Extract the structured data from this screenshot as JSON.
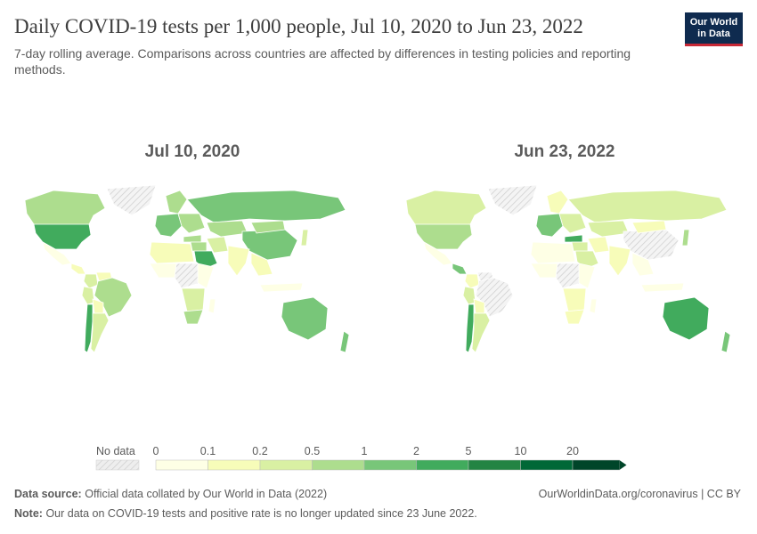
{
  "header": {
    "title": "Daily COVID-19 tests per 1,000 people, Jul 10, 2020 to Jun 23, 2022",
    "subtitle": "7-day rolling average. Comparisons across countries are affected by differences in testing policies and reporting methods."
  },
  "logo": {
    "line1": "Our World",
    "line2": "in Data"
  },
  "footer": {
    "source_label": "Data source:",
    "source_text": "Official data collated by Our World in Data (2022)",
    "note_label": "Note:",
    "note_text": "Our data on COVID-19 tests and positive rate is no longer updated since 23 June 2022.",
    "link": "OurWorldinData.org/coronavirus | CC BY"
  },
  "chart_data": {
    "type": "choropleth-map",
    "maps": [
      {
        "date": "Jul 10, 2020",
        "regions": [
          {
            "name": "Canada",
            "bin": 3
          },
          {
            "name": "United States",
            "bin": 5
          },
          {
            "name": "Mexico",
            "bin": 0
          },
          {
            "name": "Central America",
            "bin": 1
          },
          {
            "name": "Colombia",
            "bin": 2
          },
          {
            "name": "Venezuela",
            "bin": 1
          },
          {
            "name": "Peru",
            "bin": 2
          },
          {
            "name": "Brazil",
            "bin": 3
          },
          {
            "name": "Bolivia",
            "bin": 1
          },
          {
            "name": "Chile",
            "bin": 5
          },
          {
            "name": "Argentina",
            "bin": 2
          },
          {
            "name": "Greenland",
            "bin": -1
          },
          {
            "name": "Western Europe",
            "bin": 4
          },
          {
            "name": "Scandinavia",
            "bin": 3
          },
          {
            "name": "Eastern Europe",
            "bin": 3
          },
          {
            "name": "Russia",
            "bin": 4
          },
          {
            "name": "Kazakhstan",
            "bin": 3
          },
          {
            "name": "China",
            "bin": 4
          },
          {
            "name": "Mongolia",
            "bin": 3
          },
          {
            "name": "Turkey",
            "bin": 3
          },
          {
            "name": "Middle East",
            "bin": 3
          },
          {
            "name": "Saudi Arabia",
            "bin": 5
          },
          {
            "name": "Iran",
            "bin": 2
          },
          {
            "name": "India",
            "bin": 1
          },
          {
            "name": "South East Asia",
            "bin": 1
          },
          {
            "name": "Japan",
            "bin": 2
          },
          {
            "name": "Indonesia",
            "bin": 0
          },
          {
            "name": "North Africa",
            "bin": 1
          },
          {
            "name": "West Africa",
            "bin": 0
          },
          {
            "name": "Central Africa",
            "bin": -1
          },
          {
            "name": "East Africa",
            "bin": 0
          },
          {
            "name": "Southern Africa",
            "bin": 2
          },
          {
            "name": "South Africa",
            "bin": 3
          },
          {
            "name": "Madagascar",
            "bin": 0
          },
          {
            "name": "Australia",
            "bin": 4
          },
          {
            "name": "New Zealand",
            "bin": 4
          }
        ]
      },
      {
        "date": "Jun 23, 2022",
        "regions": [
          {
            "name": "Canada",
            "bin": 2
          },
          {
            "name": "United States",
            "bin": 3
          },
          {
            "name": "Mexico",
            "bin": 0
          },
          {
            "name": "Central America",
            "bin": 4
          },
          {
            "name": "Colombia",
            "bin": 1
          },
          {
            "name": "Venezuela",
            "bin": -1
          },
          {
            "name": "Peru",
            "bin": 2
          },
          {
            "name": "Brazil",
            "bin": -1
          },
          {
            "name": "Bolivia",
            "bin": 1
          },
          {
            "name": "Chile",
            "bin": 5
          },
          {
            "name": "Argentina",
            "bin": 2
          },
          {
            "name": "Greenland",
            "bin": -1
          },
          {
            "name": "Western Europe",
            "bin": 4
          },
          {
            "name": "Scandinavia",
            "bin": 1
          },
          {
            "name": "Eastern Europe",
            "bin": 2
          },
          {
            "name": "Russia",
            "bin": 2
          },
          {
            "name": "Kazakhstan",
            "bin": 2
          },
          {
            "name": "China",
            "bin": -1
          },
          {
            "name": "Mongolia",
            "bin": 1
          },
          {
            "name": "Turkey",
            "bin": 5
          },
          {
            "name": "Middle East",
            "bin": 2
          },
          {
            "name": "Saudi Arabia",
            "bin": 2
          },
          {
            "name": "Iran",
            "bin": 1
          },
          {
            "name": "India",
            "bin": 1
          },
          {
            "name": "South East Asia",
            "bin": 0
          },
          {
            "name": "Japan",
            "bin": 3
          },
          {
            "name": "Indonesia",
            "bin": 0
          },
          {
            "name": "North Africa",
            "bin": 0
          },
          {
            "name": "West Africa",
            "bin": 0
          },
          {
            "name": "Central Africa",
            "bin": -1
          },
          {
            "name": "East Africa",
            "bin": 0
          },
          {
            "name": "Southern Africa",
            "bin": 1
          },
          {
            "name": "South Africa",
            "bin": 1
          },
          {
            "name": "Madagascar",
            "bin": 0
          },
          {
            "name": "Australia",
            "bin": 5
          },
          {
            "name": "New Zealand",
            "bin": 4
          }
        ]
      }
    ],
    "legend": {
      "no_data_label": "No data",
      "no_data_color": "#eeeeee",
      "ticks": [
        "0",
        "0.1",
        "0.2",
        "0.5",
        "1",
        "2",
        "5",
        "10",
        "20"
      ],
      "colors": [
        "#feffe5",
        "#f7fcb9",
        "#d9f0a3",
        "#addd8e",
        "#78c679",
        "#41ab5d",
        "#238443",
        "#006837",
        "#004529"
      ]
    }
  }
}
